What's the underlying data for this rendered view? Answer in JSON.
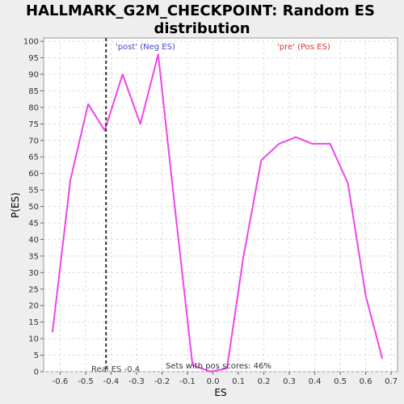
{
  "chart_data": {
    "type": "line",
    "title_line1": "HALLMARK_G2M_CHECKPOINT: Random ES",
    "title_line2": "distribution",
    "xlabel": "ES",
    "ylabel": "P(ES)",
    "xlim": [
      -0.665,
      0.725
    ],
    "ylim": [
      0,
      101
    ],
    "x_ticks": [
      -0.6,
      -0.5,
      -0.4,
      -0.3,
      -0.2,
      -0.1,
      0.0,
      0.1,
      0.2,
      0.3,
      0.4,
      0.5,
      0.6,
      0.7
    ],
    "x_tick_labels": [
      "-0.6",
      "-0.5",
      "-0.4",
      "-0.3",
      "-0.2",
      "-0.1",
      "0.0",
      "0.1",
      "0.2",
      "0.3",
      "0.4",
      "0.5",
      "0.6",
      "0.7"
    ],
    "y_ticks": [
      0,
      5,
      10,
      15,
      20,
      25,
      30,
      35,
      40,
      45,
      50,
      55,
      60,
      65,
      70,
      75,
      80,
      85,
      90,
      95,
      100
    ],
    "grid": true,
    "series": [
      {
        "color": "#ee44ee",
        "x": [
          -0.63,
          -0.56,
          -0.49,
          -0.425,
          -0.355,
          -0.285,
          -0.215,
          -0.15,
          -0.08,
          -0.01,
          0.055,
          0.12,
          0.19,
          0.26,
          0.325,
          0.39,
          0.46,
          0.53,
          0.6,
          0.665
        ],
        "y": [
          12,
          58,
          81,
          73,
          90,
          75,
          96,
          50,
          2,
          0,
          1,
          35,
          64,
          69,
          71,
          69,
          69,
          57,
          23,
          4
        ]
      }
    ],
    "real_es": {
      "x": -0.42,
      "label": "Real ES -0.4"
    },
    "annotations": {
      "post_label": "'post' (Neg ES)",
      "post_color": "#4444cc",
      "pre_label": "'pre' (Pos ES)",
      "pre_color": "#dd3333",
      "sets_label": "Sets with pos scores: 46%"
    }
  }
}
